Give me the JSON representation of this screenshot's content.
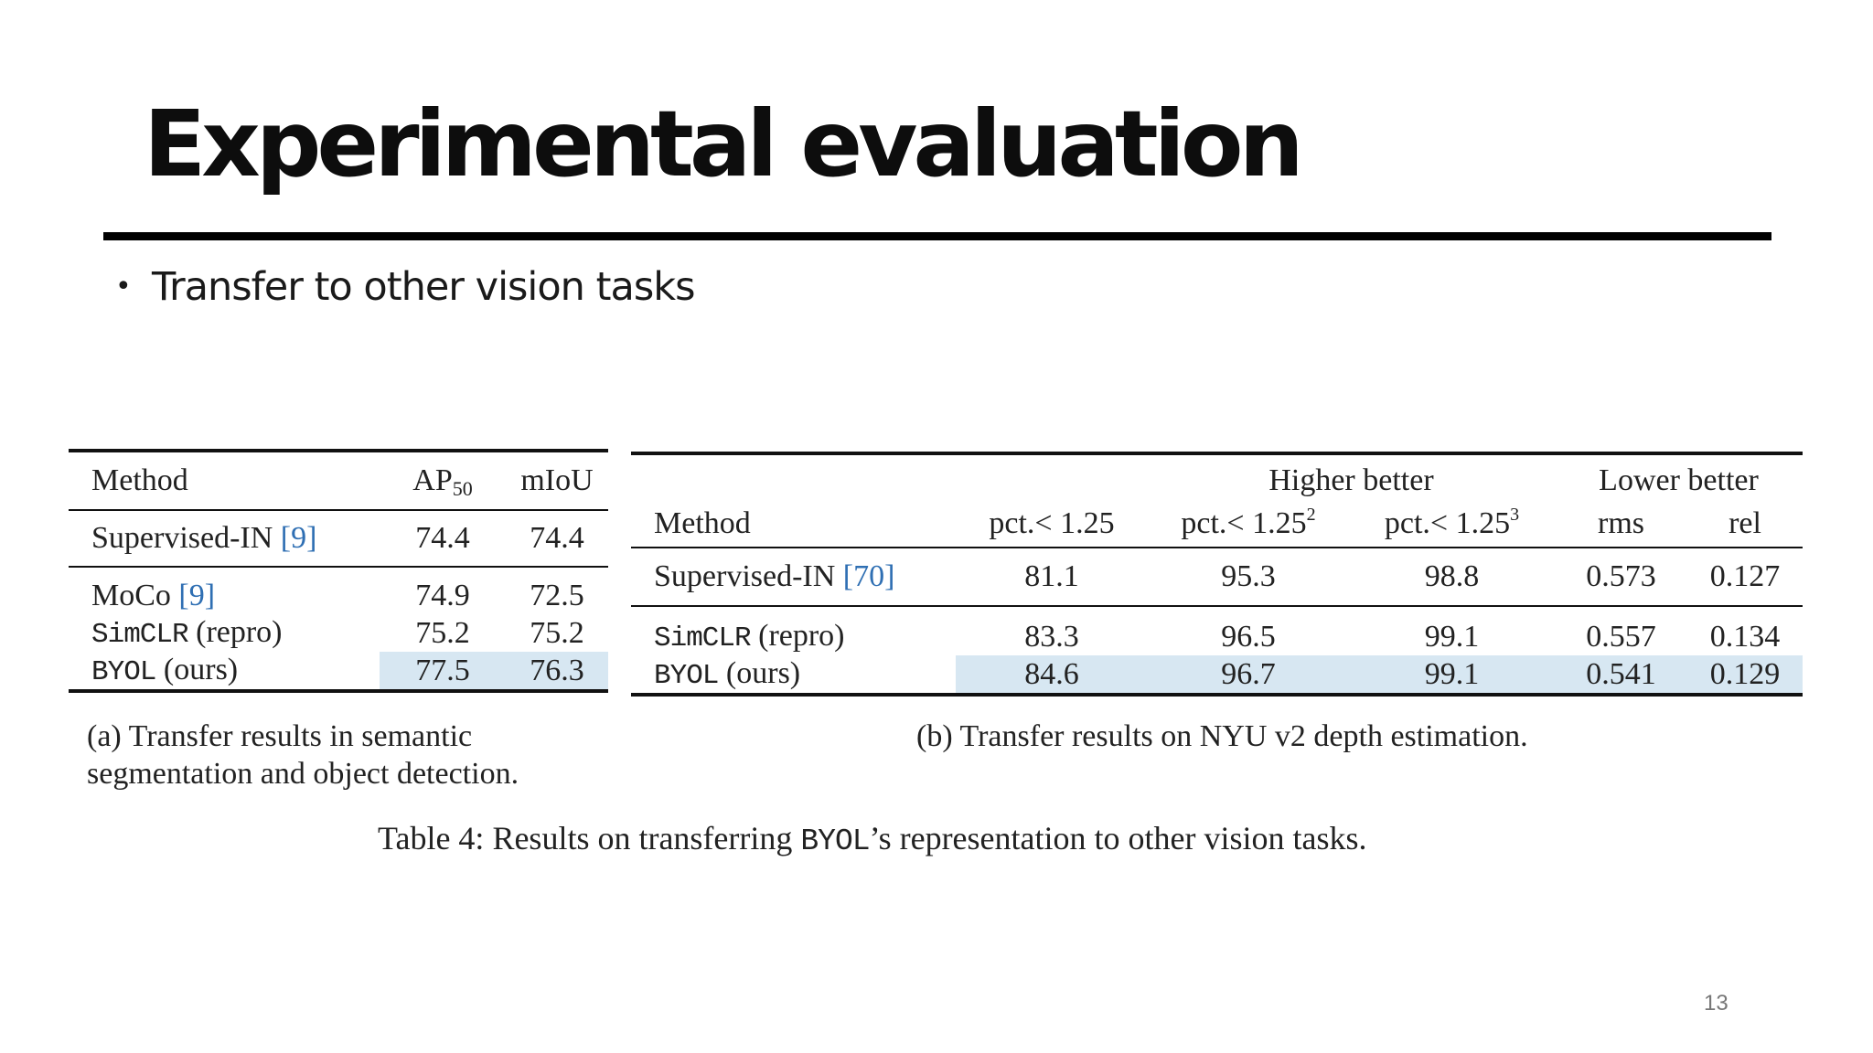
{
  "slide": {
    "title": "Experimental evaluation",
    "bullet": "Transfer to other vision tasks",
    "page_number": "13"
  },
  "table_a": {
    "headers": {
      "method": "Method",
      "ap": "AP",
      "ap_sub": "50",
      "miou": "mIoU"
    },
    "rows": [
      {
        "method": "Supervised-IN",
        "cite": "[9]",
        "ap": "74.4",
        "miou": "74.4"
      },
      {
        "method": "MoCo",
        "cite": "[9]",
        "ap": "74.9",
        "miou": "72.5"
      },
      {
        "method_mono": "SimCLR",
        "suffix": "(repro)",
        "ap": "75.2",
        "miou": "75.2"
      },
      {
        "method_mono": "BYOL",
        "suffix": "(ours)",
        "ap": "77.5",
        "miou": "76.3"
      }
    ],
    "caption": "(a) Transfer results in semantic segmentation and object detection."
  },
  "table_b": {
    "group_higher": "Higher better",
    "group_lower": "Lower better",
    "headers": {
      "method": "Method",
      "p1": "pct.< 1.25",
      "p2": "pct.< 1.25",
      "p2_sup": "2",
      "p3": "pct.< 1.25",
      "p3_sup": "3",
      "rms": "rms",
      "rel": "rel"
    },
    "rows": [
      {
        "method": "Supervised-IN",
        "cite": "[70]",
        "p1": "81.1",
        "p2": "95.3",
        "p3": "98.8",
        "rms": "0.573",
        "rel": "0.127"
      },
      {
        "method_mono": "SimCLR",
        "suffix": "(repro)",
        "p1": "83.3",
        "p2": "96.5",
        "p3": "99.1",
        "rms": "0.557",
        "rel": "0.134"
      },
      {
        "method_mono": "BYOL",
        "suffix": "(ours)",
        "p1": "84.6",
        "p2": "96.7",
        "p3": "99.1",
        "rms": "0.541",
        "rel": "0.129"
      }
    ],
    "caption": "(b) Transfer results on NYU v2 depth estimation."
  },
  "figure_caption": {
    "prefix": "Table 4: Results on transferring",
    "mono": "BYOL",
    "suffix": "’s representation to other vision tasks."
  },
  "colors": {
    "highlight": "#d7e7f2",
    "citation": "#2f6fb3"
  }
}
